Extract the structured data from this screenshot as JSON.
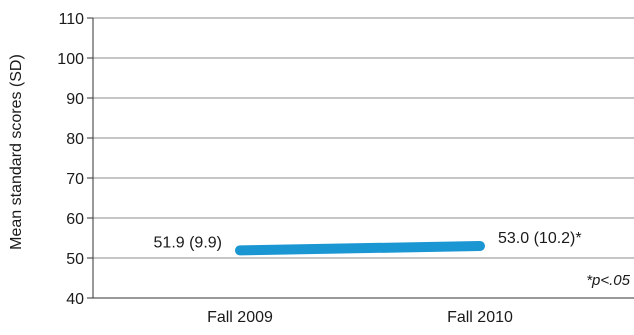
{
  "chart_data": {
    "type": "line",
    "categories": [
      "Fall 2009",
      "Fall 2010"
    ],
    "series": [
      {
        "values": [
          51.9,
          53.0
        ],
        "labels": [
          "51.9 (9.9)",
          "53.0 (10.2)*"
        ],
        "color": "#1a96d3"
      }
    ],
    "ylabel": "Mean standard scores (SD)",
    "ylim": [
      40,
      110
    ],
    "yticks": [
      40,
      50,
      60,
      70,
      80,
      90,
      100,
      110
    ],
    "grid": true,
    "annotation": "*p<.05"
  },
  "colors": {
    "series": "#1a96d3",
    "grid": "#8c8c8c",
    "axis": "#333333",
    "text": "#1a1a1a"
  }
}
